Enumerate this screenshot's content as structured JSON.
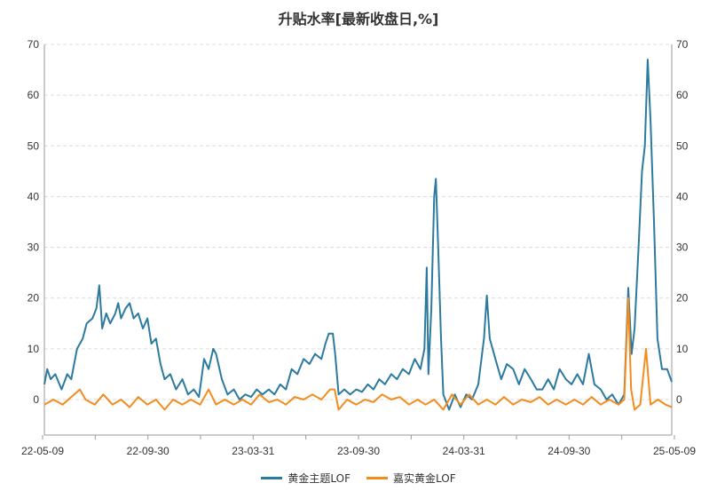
{
  "chart_data": {
    "type": "line",
    "title": "升贴水率[最新收盘日,%]",
    "x_ticks": [
      "22-05-09",
      "22-09-30",
      "23-03-31",
      "23-09-30",
      "24-03-31",
      "24-09-30",
      "25-05-09"
    ],
    "x_range": [
      "2022-05-09",
      "2025-05-09"
    ],
    "ylim": [
      -7,
      70
    ],
    "y_ticks": [
      0,
      10,
      20,
      30,
      40,
      50,
      60,
      70
    ],
    "grid": true,
    "legend_position": "bottom",
    "series": [
      {
        "name": "黄金主题LOF",
        "color": "#2c7aa0",
        "points": [
          [
            "2022-05-09",
            3
          ],
          [
            "2022-05-14",
            6
          ],
          [
            "2022-05-20",
            4
          ],
          [
            "2022-05-28",
            5
          ],
          [
            "2022-06-08",
            2
          ],
          [
            "2022-06-18",
            5
          ],
          [
            "2022-06-25",
            4
          ],
          [
            "2022-07-05",
            10
          ],
          [
            "2022-07-15",
            12
          ],
          [
            "2022-07-22",
            15
          ],
          [
            "2022-08-01",
            16
          ],
          [
            "2022-08-08",
            18
          ],
          [
            "2022-08-13",
            22.5
          ],
          [
            "2022-08-18",
            14
          ],
          [
            "2022-08-25",
            17
          ],
          [
            "2022-09-01",
            15
          ],
          [
            "2022-09-10",
            17
          ],
          [
            "2022-09-15",
            19
          ],
          [
            "2022-09-20",
            16
          ],
          [
            "2022-09-28",
            18
          ],
          [
            "2022-10-05",
            19
          ],
          [
            "2022-10-12",
            16
          ],
          [
            "2022-10-20",
            17
          ],
          [
            "2022-10-28",
            14
          ],
          [
            "2022-11-05",
            16
          ],
          [
            "2022-11-12",
            11
          ],
          [
            "2022-11-20",
            12
          ],
          [
            "2022-11-28",
            7
          ],
          [
            "2022-12-05",
            4
          ],
          [
            "2022-12-15",
            5
          ],
          [
            "2022-12-25",
            2
          ],
          [
            "2023-01-05",
            4
          ],
          [
            "2023-01-15",
            1
          ],
          [
            "2023-01-25",
            2
          ],
          [
            "2023-02-03",
            0.5
          ],
          [
            "2023-02-12",
            8
          ],
          [
            "2023-02-20",
            6
          ],
          [
            "2023-02-28",
            10
          ],
          [
            "2023-03-05",
            9
          ],
          [
            "2023-03-15",
            4
          ],
          [
            "2023-03-25",
            1
          ],
          [
            "2023-04-05",
            2
          ],
          [
            "2023-04-15",
            0
          ],
          [
            "2023-04-25",
            1
          ],
          [
            "2023-05-05",
            0.5
          ],
          [
            "2023-05-15",
            2
          ],
          [
            "2023-05-25",
            1
          ],
          [
            "2023-06-05",
            2
          ],
          [
            "2023-06-15",
            1
          ],
          [
            "2023-06-25",
            3
          ],
          [
            "2023-07-05",
            2
          ],
          [
            "2023-07-15",
            6
          ],
          [
            "2023-07-25",
            5
          ],
          [
            "2023-08-05",
            8
          ],
          [
            "2023-08-15",
            7
          ],
          [
            "2023-08-25",
            9
          ],
          [
            "2023-09-05",
            8
          ],
          [
            "2023-09-12",
            11
          ],
          [
            "2023-09-18",
            13
          ],
          [
            "2023-09-25",
            13
          ],
          [
            "2023-09-29",
            9
          ],
          [
            "2023-10-05",
            1
          ],
          [
            "2023-10-15",
            2
          ],
          [
            "2023-10-25",
            1
          ],
          [
            "2023-11-05",
            2
          ],
          [
            "2023-11-15",
            1.5
          ],
          [
            "2023-11-25",
            3
          ],
          [
            "2023-12-05",
            2
          ],
          [
            "2023-12-15",
            4
          ],
          [
            "2023-12-25",
            3
          ],
          [
            "2024-01-05",
            5
          ],
          [
            "2024-01-15",
            4
          ],
          [
            "2024-01-25",
            6
          ],
          [
            "2024-02-05",
            5
          ],
          [
            "2024-02-15",
            8
          ],
          [
            "2024-02-25",
            6
          ],
          [
            "2024-03-03",
            10
          ],
          [
            "2024-03-07",
            26
          ],
          [
            "2024-03-10",
            5
          ],
          [
            "2024-03-15",
            18
          ],
          [
            "2024-03-20",
            40
          ],
          [
            "2024-03-23",
            43.5
          ],
          [
            "2024-03-27",
            30
          ],
          [
            "2024-04-01",
            12
          ],
          [
            "2024-04-05",
            1
          ],
          [
            "2024-04-15",
            -2
          ],
          [
            "2024-04-25",
            1
          ],
          [
            "2024-05-05",
            -1.5
          ],
          [
            "2024-05-15",
            1
          ],
          [
            "2024-05-25",
            0
          ],
          [
            "2024-06-05",
            3
          ],
          [
            "2024-06-15",
            12
          ],
          [
            "2024-06-20",
            20.5
          ],
          [
            "2024-06-25",
            12
          ],
          [
            "2024-07-05",
            8
          ],
          [
            "2024-07-15",
            4
          ],
          [
            "2024-07-25",
            7
          ],
          [
            "2024-08-05",
            6
          ],
          [
            "2024-08-15",
            3
          ],
          [
            "2024-08-25",
            6
          ],
          [
            "2024-09-05",
            4
          ],
          [
            "2024-09-15",
            2
          ],
          [
            "2024-09-25",
            2
          ],
          [
            "2024-10-05",
            4
          ],
          [
            "2024-10-15",
            2
          ],
          [
            "2024-10-25",
            6
          ],
          [
            "2024-11-05",
            4
          ],
          [
            "2024-11-15",
            3
          ],
          [
            "2024-11-25",
            5
          ],
          [
            "2024-12-05",
            3
          ],
          [
            "2024-12-15",
            9
          ],
          [
            "2024-12-25",
            3
          ],
          [
            "2025-01-05",
            2
          ],
          [
            "2025-01-15",
            0
          ],
          [
            "2025-01-25",
            1
          ],
          [
            "2025-02-05",
            -1
          ],
          [
            "2025-02-15",
            1
          ],
          [
            "2025-02-22",
            22
          ],
          [
            "2025-02-28",
            9
          ],
          [
            "2025-03-05",
            14
          ],
          [
            "2025-03-12",
            30
          ],
          [
            "2025-03-18",
            45
          ],
          [
            "2025-03-23",
            50
          ],
          [
            "2025-03-28",
            67
          ],
          [
            "2025-04-02",
            55
          ],
          [
            "2025-04-08",
            35
          ],
          [
            "2025-04-14",
            12
          ],
          [
            "2025-04-22",
            6
          ],
          [
            "2025-05-01",
            6
          ],
          [
            "2025-05-09",
            3.5
          ]
        ]
      },
      {
        "name": "嘉实黄金LOF",
        "color": "#f28c1e",
        "points": [
          [
            "2022-05-09",
            -1
          ],
          [
            "2022-05-25",
            0
          ],
          [
            "2022-06-10",
            -1
          ],
          [
            "2022-06-25",
            0.5
          ],
          [
            "2022-07-10",
            2
          ],
          [
            "2022-07-20",
            0
          ],
          [
            "2022-08-05",
            -1
          ],
          [
            "2022-08-20",
            1
          ],
          [
            "2022-09-05",
            -1
          ],
          [
            "2022-09-20",
            0
          ],
          [
            "2022-10-05",
            -1.5
          ],
          [
            "2022-10-20",
            0.5
          ],
          [
            "2022-11-05",
            -1
          ],
          [
            "2022-11-20",
            0
          ],
          [
            "2022-12-05",
            -2
          ],
          [
            "2022-12-20",
            0
          ],
          [
            "2023-01-05",
            -1
          ],
          [
            "2023-01-20",
            0
          ],
          [
            "2023-02-05",
            -1
          ],
          [
            "2023-02-20",
            2
          ],
          [
            "2023-03-05",
            -1
          ],
          [
            "2023-03-20",
            0
          ],
          [
            "2023-04-05",
            -1
          ],
          [
            "2023-04-20",
            0
          ],
          [
            "2023-05-05",
            -1
          ],
          [
            "2023-05-20",
            1
          ],
          [
            "2023-06-05",
            -0.5
          ],
          [
            "2023-06-20",
            0
          ],
          [
            "2023-07-05",
            -1
          ],
          [
            "2023-07-20",
            0.5
          ],
          [
            "2023-08-05",
            0
          ],
          [
            "2023-08-20",
            1
          ],
          [
            "2023-09-05",
            0
          ],
          [
            "2023-09-20",
            2
          ],
          [
            "2023-09-28",
            2
          ],
          [
            "2023-10-05",
            -2
          ],
          [
            "2023-10-20",
            0
          ],
          [
            "2023-11-05",
            -1
          ],
          [
            "2023-11-20",
            0
          ],
          [
            "2023-12-05",
            -0.5
          ],
          [
            "2023-12-20",
            1
          ],
          [
            "2024-01-05",
            0
          ],
          [
            "2024-01-20",
            0.5
          ],
          [
            "2024-02-05",
            -1
          ],
          [
            "2024-02-20",
            0
          ],
          [
            "2024-03-05",
            -1
          ],
          [
            "2024-03-20",
            0
          ],
          [
            "2024-04-05",
            -2
          ],
          [
            "2024-04-20",
            1
          ],
          [
            "2024-05-05",
            -1
          ],
          [
            "2024-05-20",
            1
          ],
          [
            "2024-06-05",
            -1
          ],
          [
            "2024-06-20",
            0
          ],
          [
            "2024-07-05",
            -1
          ],
          [
            "2024-07-20",
            0.5
          ],
          [
            "2024-08-05",
            -1
          ],
          [
            "2024-08-20",
            0
          ],
          [
            "2024-09-05",
            -0.5
          ],
          [
            "2024-09-20",
            0.5
          ],
          [
            "2024-10-05",
            -1
          ],
          [
            "2024-10-20",
            0
          ],
          [
            "2024-11-05",
            -1
          ],
          [
            "2024-11-20",
            0
          ],
          [
            "2024-12-05",
            -1
          ],
          [
            "2024-12-20",
            0.5
          ],
          [
            "2025-01-05",
            -1
          ],
          [
            "2025-01-20",
            0
          ],
          [
            "2025-02-05",
            -1
          ],
          [
            "2025-02-15",
            0
          ],
          [
            "2025-02-22",
            20
          ],
          [
            "2025-02-27",
            2
          ],
          [
            "2025-03-05",
            -2
          ],
          [
            "2025-03-15",
            -1
          ],
          [
            "2025-03-25",
            10
          ],
          [
            "2025-04-02",
            -1
          ],
          [
            "2025-04-15",
            0
          ],
          [
            "2025-04-28",
            -1
          ],
          [
            "2025-05-09",
            -1.5
          ]
        ]
      }
    ]
  }
}
